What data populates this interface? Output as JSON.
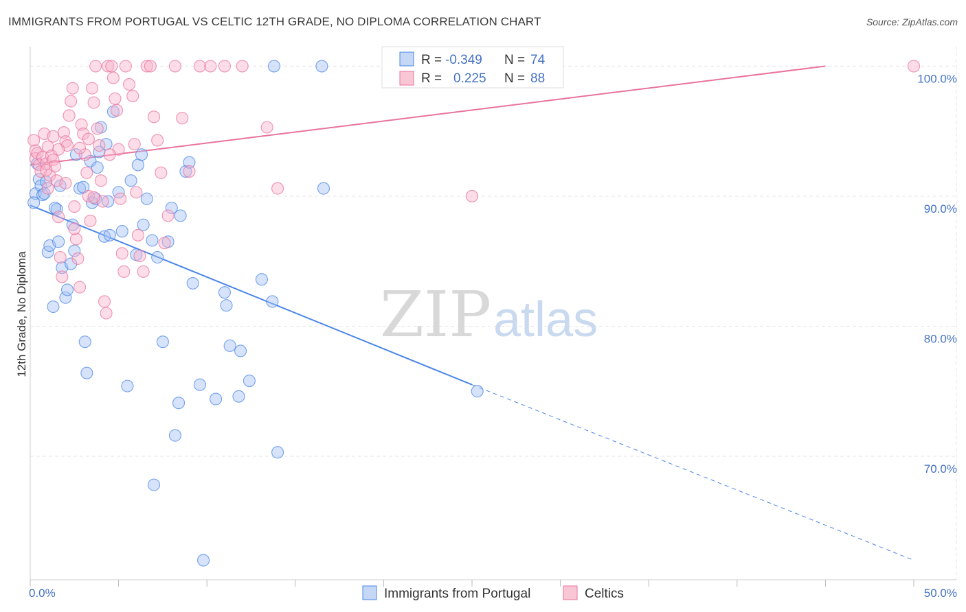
{
  "title": "IMMIGRANTS FROM PORTUGAL VS CELTIC 12TH GRADE, NO DIPLOMA CORRELATION CHART",
  "source": "Source: ZipAtlas.com",
  "watermark": {
    "zip": "ZIP",
    "atlas": "atlas"
  },
  "legend_stats": [
    {
      "r_label": "R =",
      "r_value": "-0.349",
      "n_label": "N =",
      "n_value": "74"
    },
    {
      "r_label": "R =",
      "r_value": "0.225",
      "n_label": "N =",
      "n_value": "88"
    }
  ],
  "chart_data": {
    "type": "scatter",
    "title": "IMMIGRANTS FROM PORTUGAL VS CELTIC 12TH GRADE, NO DIPLOMA CORRELATION CHART",
    "xlabel": "",
    "ylabel": "12th Grade, No Diploma",
    "xlim": [
      0,
      50
    ],
    "ylim": [
      60.5,
      101.5
    ],
    "x_tick_labels": [
      "0.0%",
      "50.0%"
    ],
    "y_ticks": [
      70,
      80,
      90,
      100
    ],
    "y_tick_labels": [
      "70.0%",
      "80.0%",
      "90.0%",
      "100.0%"
    ],
    "grid": true,
    "legend_position": "bottom",
    "colors": {
      "portugal": "#4a86e8",
      "celtics": "#e8739b"
    },
    "series": [
      {
        "name": "Immigrants from Portugal",
        "color": "#4a86e8",
        "trend": {
          "x0": 0,
          "y0": 89.3,
          "x1": 25,
          "y1": 75.5,
          "dashed_to_x": 50,
          "dashed_to_y": 62.0
        },
        "points": [
          [
            0.3,
            90.2
          ],
          [
            0.4,
            92.5
          ],
          [
            0.5,
            91.3
          ],
          [
            0.6,
            90.8
          ],
          [
            0.7,
            90.1
          ],
          [
            0.8,
            90.2
          ],
          [
            0.9,
            91.1
          ],
          [
            1.0,
            85.7
          ],
          [
            1.1,
            86.2
          ],
          [
            1.3,
            81.5
          ],
          [
            1.5,
            89.0
          ],
          [
            1.6,
            86.5
          ],
          [
            1.7,
            90.8
          ],
          [
            1.8,
            84.5
          ],
          [
            2.0,
            82.2
          ],
          [
            2.1,
            82.8
          ],
          [
            2.3,
            84.8
          ],
          [
            2.4,
            87.8
          ],
          [
            2.5,
            85.8
          ],
          [
            2.6,
            93.2
          ],
          [
            2.8,
            90.6
          ],
          [
            3.0,
            90.7
          ],
          [
            3.1,
            78.8
          ],
          [
            3.2,
            76.4
          ],
          [
            3.4,
            92.7
          ],
          [
            3.5,
            89.5
          ],
          [
            3.7,
            89.8
          ],
          [
            3.8,
            92.2
          ],
          [
            3.9,
            93.4
          ],
          [
            4.0,
            95.3
          ],
          [
            4.2,
            86.9
          ],
          [
            4.3,
            94.0
          ],
          [
            4.4,
            89.6
          ],
          [
            4.5,
            87.0
          ],
          [
            4.7,
            96.5
          ],
          [
            5.0,
            90.3
          ],
          [
            5.2,
            87.3
          ],
          [
            5.5,
            75.4
          ],
          [
            5.7,
            91.2
          ],
          [
            6.0,
            85.5
          ],
          [
            6.1,
            92.4
          ],
          [
            6.3,
            93.2
          ],
          [
            6.4,
            87.8
          ],
          [
            6.6,
            89.8
          ],
          [
            6.9,
            86.6
          ],
          [
            7.0,
            67.8
          ],
          [
            7.2,
            85.3
          ],
          [
            7.5,
            78.8
          ],
          [
            7.8,
            86.5
          ],
          [
            8.0,
            89.1
          ],
          [
            8.2,
            71.6
          ],
          [
            8.4,
            74.1
          ],
          [
            8.5,
            88.5
          ],
          [
            8.8,
            91.9
          ],
          [
            9.0,
            92.6
          ],
          [
            9.2,
            83.3
          ],
          [
            9.6,
            75.5
          ],
          [
            9.8,
            62.0
          ],
          [
            10.5,
            74.4
          ],
          [
            11.0,
            82.6
          ],
          [
            11.1,
            81.6
          ],
          [
            11.3,
            78.5
          ],
          [
            11.8,
            74.6
          ],
          [
            11.9,
            78.1
          ],
          [
            12.4,
            75.8
          ],
          [
            13.1,
            83.6
          ],
          [
            13.7,
            81.9
          ],
          [
            13.8,
            100.0
          ],
          [
            14.0,
            70.3
          ],
          [
            16.5,
            100.0
          ],
          [
            16.6,
            90.6
          ],
          [
            25.3,
            75.0
          ],
          [
            0.2,
            89.5
          ],
          [
            1.4,
            89.1
          ]
        ]
      },
      {
        "name": "Celtics",
        "color": "#e8739b",
        "trend": {
          "x0": 0,
          "y0": 92.4,
          "x1": 45,
          "y1": 100.0
        },
        "points": [
          [
            0.2,
            94.3
          ],
          [
            0.3,
            93.5
          ],
          [
            0.3,
            92.9
          ],
          [
            0.4,
            93.3
          ],
          [
            0.5,
            92.4
          ],
          [
            0.6,
            91.9
          ],
          [
            0.7,
            93.0
          ],
          [
            0.8,
            94.8
          ],
          [
            0.9,
            92.5
          ],
          [
            1.0,
            93.8
          ],
          [
            1.1,
            91.6
          ],
          [
            1.2,
            93.1
          ],
          [
            1.3,
            92.8
          ],
          [
            1.4,
            92.3
          ],
          [
            1.5,
            91.2
          ],
          [
            1.6,
            88.4
          ],
          [
            1.7,
            85.3
          ],
          [
            1.8,
            83.8
          ],
          [
            1.9,
            94.9
          ],
          [
            2.0,
            94.2
          ],
          [
            2.1,
            93.9
          ],
          [
            2.2,
            96.2
          ],
          [
            2.3,
            97.3
          ],
          [
            2.4,
            98.3
          ],
          [
            2.5,
            89.2
          ],
          [
            2.6,
            86.7
          ],
          [
            2.7,
            85.2
          ],
          [
            2.8,
            83.0
          ],
          [
            2.9,
            95.5
          ],
          [
            3.0,
            94.8
          ],
          [
            3.1,
            93.2
          ],
          [
            3.2,
            91.8
          ],
          [
            3.3,
            90.0
          ],
          [
            3.4,
            88.1
          ],
          [
            3.5,
            98.3
          ],
          [
            3.6,
            97.2
          ],
          [
            3.7,
            100.0
          ],
          [
            3.8,
            95.2
          ],
          [
            3.9,
            93.9
          ],
          [
            4.0,
            91.2
          ],
          [
            4.1,
            89.6
          ],
          [
            4.2,
            81.9
          ],
          [
            4.3,
            81.0
          ],
          [
            4.4,
            100.0
          ],
          [
            4.6,
            100.0
          ],
          [
            4.7,
            99.1
          ],
          [
            4.8,
            97.5
          ],
          [
            4.9,
            96.6
          ],
          [
            5.0,
            93.6
          ],
          [
            5.1,
            89.8
          ],
          [
            5.2,
            85.6
          ],
          [
            5.3,
            84.2
          ],
          [
            5.4,
            100.0
          ],
          [
            5.6,
            98.6
          ],
          [
            5.8,
            97.7
          ],
          [
            5.9,
            94.0
          ],
          [
            6.0,
            90.3
          ],
          [
            6.1,
            87.0
          ],
          [
            6.2,
            85.4
          ],
          [
            6.4,
            84.2
          ],
          [
            6.6,
            100.0
          ],
          [
            6.8,
            100.0
          ],
          [
            7.0,
            96.1
          ],
          [
            7.2,
            94.3
          ],
          [
            7.4,
            91.8
          ],
          [
            7.6,
            86.4
          ],
          [
            7.8,
            88.5
          ],
          [
            8.2,
            100.0
          ],
          [
            8.6,
            96.0
          ],
          [
            9.0,
            91.9
          ],
          [
            9.6,
            100.0
          ],
          [
            10.2,
            100.0
          ],
          [
            11.0,
            100.0
          ],
          [
            12.0,
            100.0
          ],
          [
            13.4,
            95.3
          ],
          [
            14.0,
            90.6
          ],
          [
            25.0,
            90.0
          ],
          [
            50.0,
            100.0
          ],
          [
            1.0,
            90.6
          ],
          [
            1.3,
            94.6
          ],
          [
            2.0,
            91.0
          ],
          [
            2.8,
            93.7
          ],
          [
            3.3,
            94.4
          ],
          [
            0.9,
            92.0
          ],
          [
            1.6,
            93.6
          ],
          [
            4.5,
            93.2
          ],
          [
            2.5,
            87.5
          ],
          [
            3.6,
            89.9
          ]
        ]
      }
    ]
  }
}
